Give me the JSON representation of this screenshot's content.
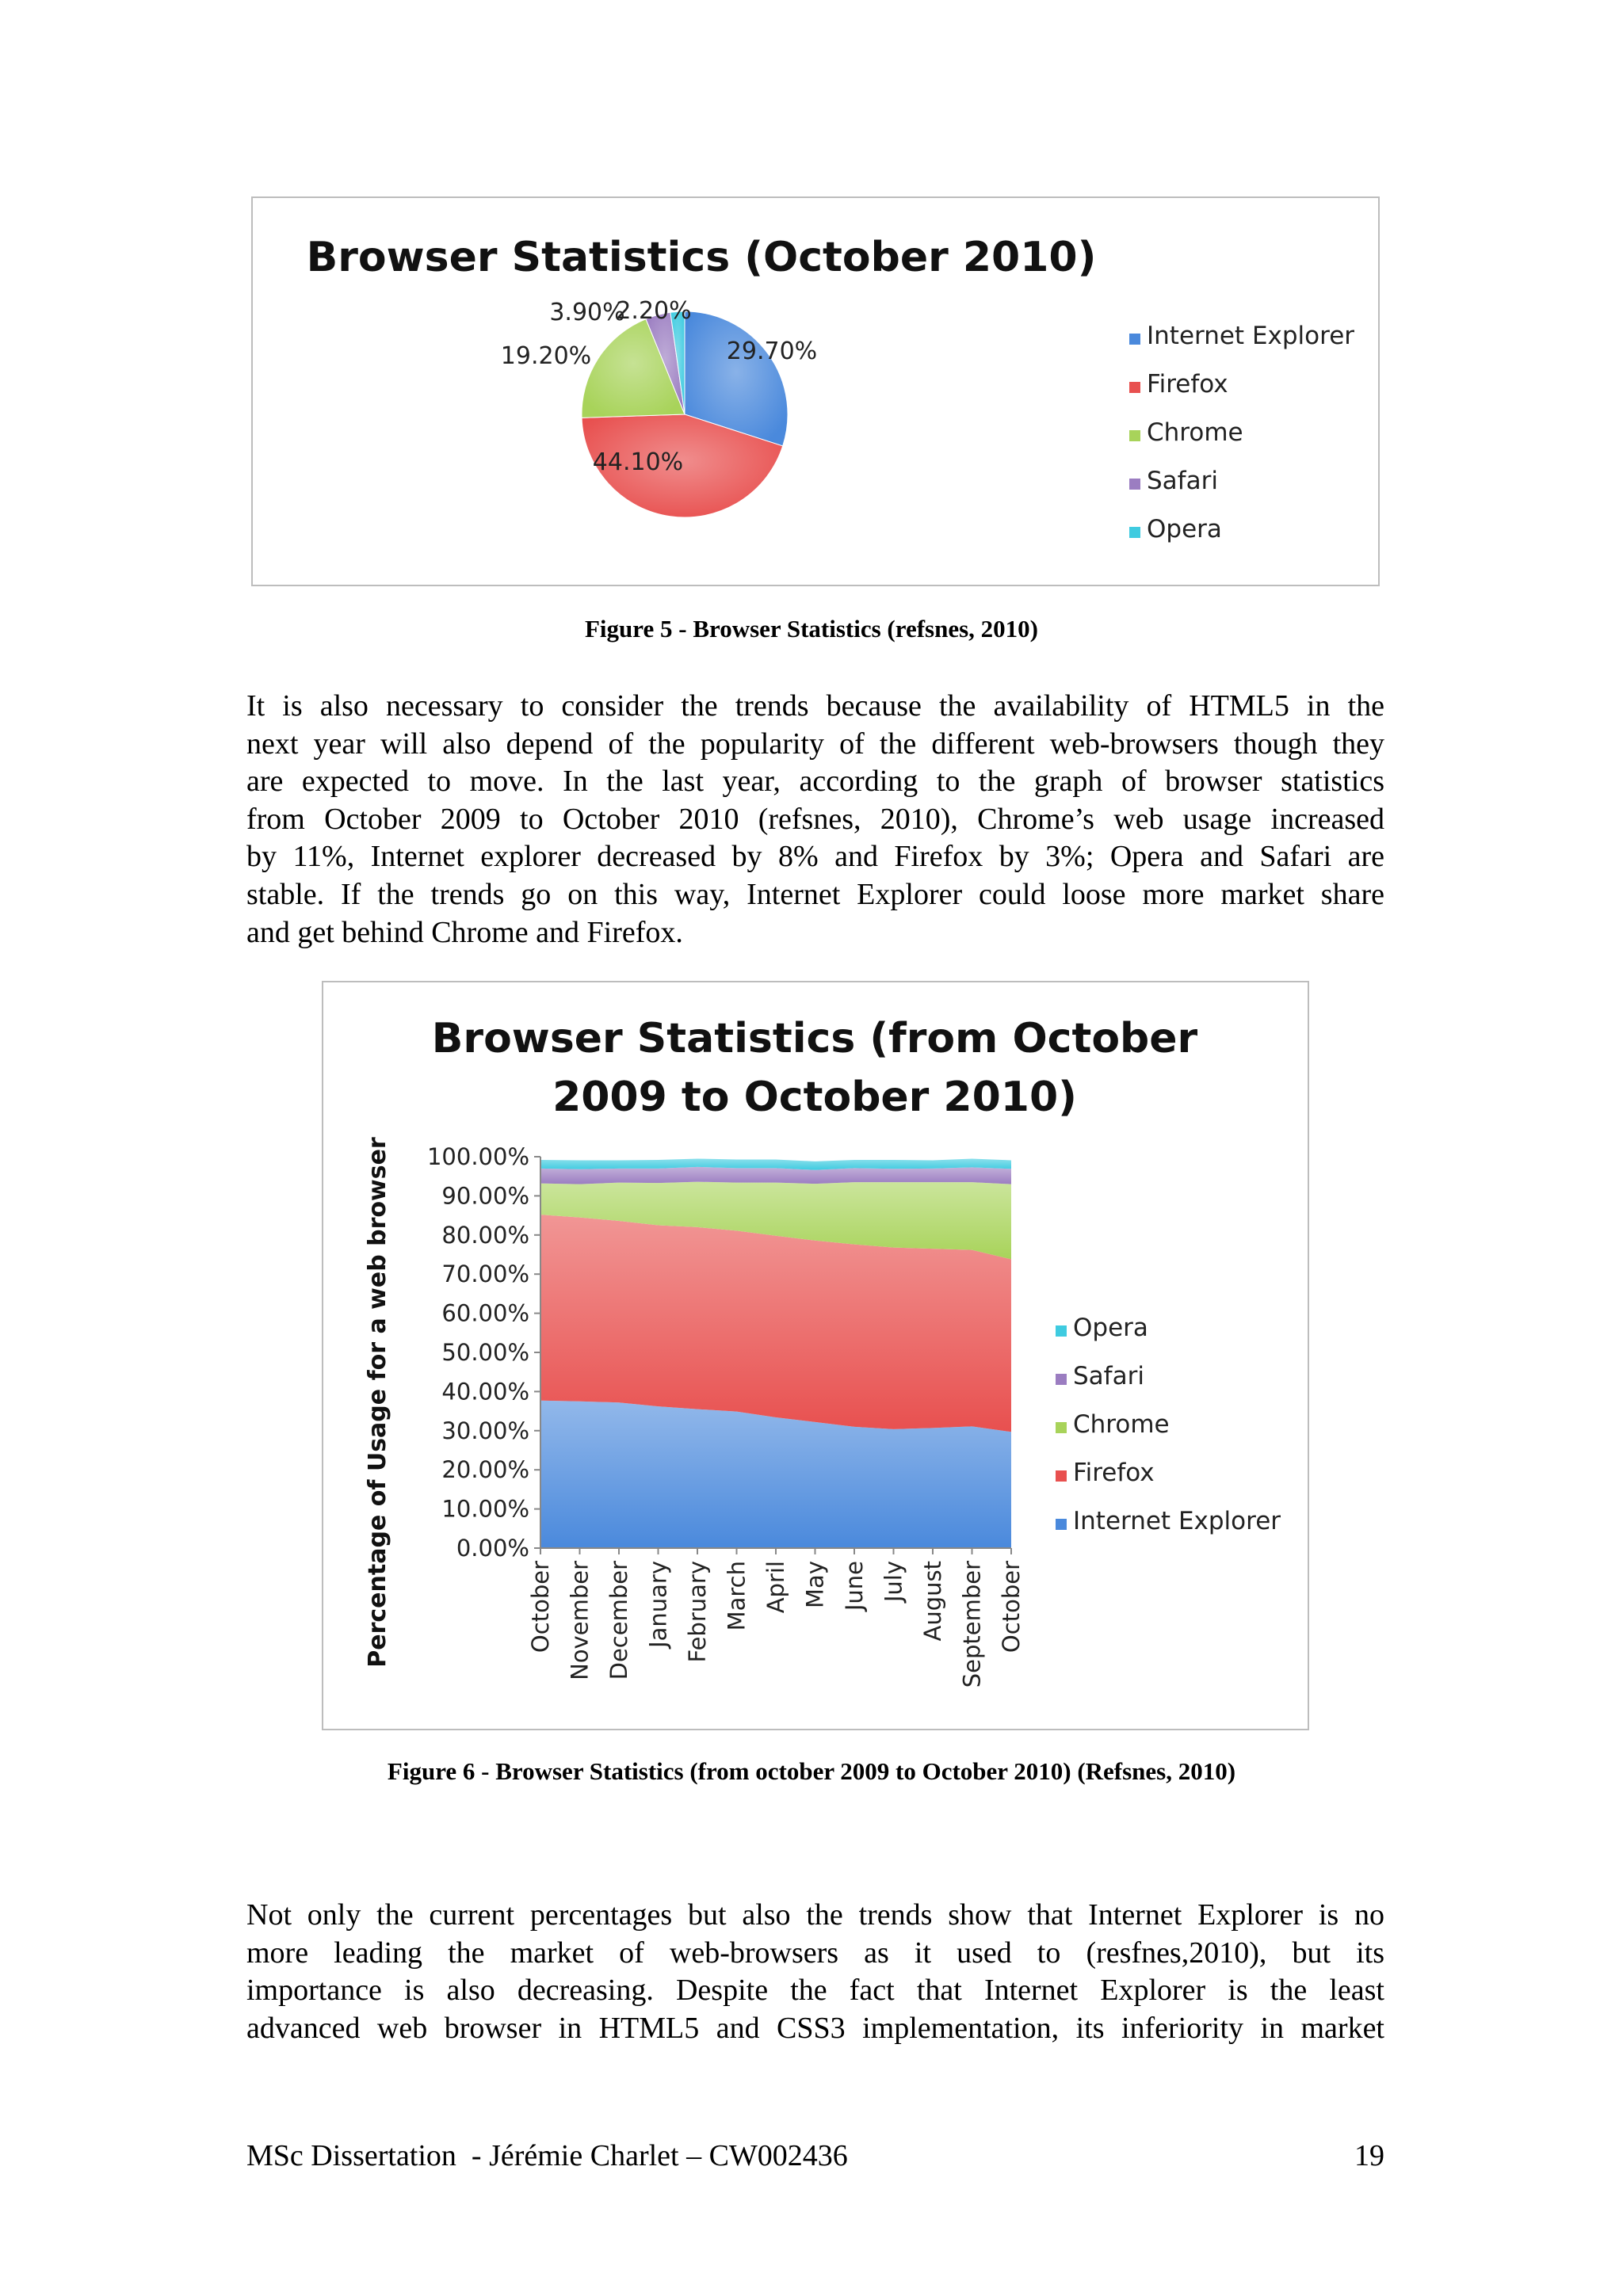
{
  "chart_data": [
    {
      "type": "pie",
      "title": "Browser Statistics (October 2010)",
      "legend_position": "right",
      "categories": [
        "Internet Explorer",
        "Firefox",
        "Chrome",
        "Safari",
        "Opera"
      ],
      "values": [
        29.7,
        44.1,
        19.2,
        3.9,
        2.2
      ],
      "value_labels": [
        "29.70%",
        "44.10%",
        "19.20%",
        "3.90%",
        "2.20%"
      ],
      "colors": [
        "#4a89dc",
        "#e8504f",
        "#a8d35a",
        "#9b7dc1",
        "#3fcbe0"
      ]
    },
    {
      "type": "area",
      "stacked": true,
      "title_lines": [
        "Browser Statistics (from October",
        "2009 to October 2010)"
      ],
      "ylabel": "Percentage of Usage for a web browser",
      "ylim": [
        0,
        100
      ],
      "yticks": [
        "0.00%",
        "10.00%",
        "20.00%",
        "30.00%",
        "40.00%",
        "50.00%",
        "60.00%",
        "70.00%",
        "80.00%",
        "90.00%",
        "100.00%"
      ],
      "legend_position": "right",
      "x": [
        "October",
        "November",
        "December",
        "January",
        "February",
        "March",
        "April",
        "May",
        "June",
        "July",
        "August",
        "September",
        "October"
      ],
      "series": [
        {
          "name": "Internet Explorer",
          "color": "#4a89dc",
          "values": [
            37.7,
            37.5,
            37.2,
            36.2,
            35.5,
            34.9,
            33.4,
            32.2,
            31.0,
            30.4,
            30.7,
            31.1,
            29.7
          ]
        },
        {
          "name": "Firefox",
          "color": "#e8504f",
          "values": [
            47.5,
            47.0,
            46.4,
            46.3,
            46.5,
            46.2,
            46.4,
            46.4,
            46.6,
            46.4,
            45.8,
            45.1,
            44.1
          ]
        },
        {
          "name": "Chrome",
          "color": "#a8d35a",
          "values": [
            8.0,
            8.5,
            9.8,
            10.8,
            11.6,
            12.3,
            13.6,
            14.5,
            15.9,
            16.7,
            17.0,
            17.3,
            19.2
          ]
        },
        {
          "name": "Safari",
          "color": "#9b7dc1",
          "values": [
            3.8,
            3.8,
            3.6,
            3.7,
            3.8,
            3.7,
            3.7,
            3.5,
            3.6,
            3.4,
            3.5,
            3.8,
            3.9
          ]
        },
        {
          "name": "Opera",
          "color": "#3fcbe0",
          "values": [
            2.2,
            2.3,
            2.1,
            2.2,
            2.1,
            2.2,
            2.2,
            2.2,
            2.1,
            2.3,
            2.1,
            2.2,
            2.2
          ]
        }
      ]
    }
  ],
  "captions": {
    "figure5": "Figure 5 - Browser Statistics (refsnes, 2010)",
    "figure6": "Figure 6 - Browser Statistics (from october 2009 to October 2010) (Refsnes, 2010)"
  },
  "paragraphs": {
    "p1": [
      "It is also necessary to consider the trends because the availability of HTML5 in the",
      "next year will also depend of the popularity of the different web-browsers though they",
      "are expected to move. In the last year, according to the graph of browser statistics",
      "from October 2009 to October 2010 (refsnes, 2010), Chrome’s web usage increased",
      "by 11%, Internet explorer decreased by 8% and Firefox by 3%; Opera and Safari are",
      "stable. If the trends go on this way, Internet Explorer could loose more market share",
      "and get behind Chrome and Firefox."
    ],
    "p2": [
      "Not only the current percentages but also the trends show that Internet Explorer is no",
      "more leading the market of web-browsers as it used to (resfnes,2010), but its",
      "importance is also decreasing.  Despite the fact that Internet Explorer is the least",
      "advanced web browser in HTML5 and CSS3 implementation, its inferiority in market"
    ]
  },
  "footer": {
    "left": "MSc Dissertation  - Jérémie Charlet – CW002436",
    "page_number": "19"
  }
}
